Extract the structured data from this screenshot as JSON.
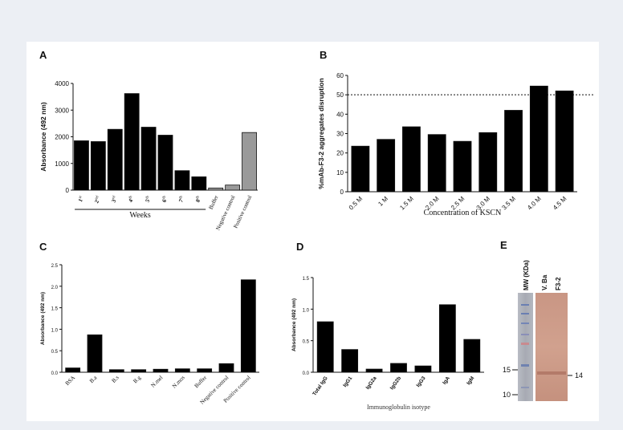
{
  "chart_data": [
    {
      "panel": "A",
      "type": "bar",
      "ylabel": "Absorbance (492 nm)",
      "xlabel": "Weeks",
      "ylim": [
        0,
        4000
      ],
      "yticks": [
        "0",
        "1000",
        "2000",
        "3000",
        "4000"
      ],
      "categories": [
        "1st",
        "2nd",
        "3rd",
        "4th",
        "5th",
        "6th",
        "7th",
        "8th",
        "Buffer",
        "Negative control",
        "Positive control"
      ],
      "values": [
        1850,
        1820,
        2280,
        3620,
        2360,
        2060,
        730,
        500,
        80,
        190,
        2160
      ],
      "colors": [
        "#000000",
        "#000000",
        "#000000",
        "#000000",
        "#000000",
        "#000000",
        "#000000",
        "#000000",
        "#9a9a9a",
        "#9a9a9a",
        "#9a9a9a"
      ]
    },
    {
      "panel": "B",
      "type": "bar",
      "ylabel": "%mAb-F3-2 aggregates disruption",
      "xlabel": "Concentration of KSCN",
      "ylim": [
        0,
        60
      ],
      "yticks": [
        "0",
        "10",
        "20",
        "30",
        "40",
        "50",
        "60"
      ],
      "reference_line": 50,
      "categories": [
        "0.5 M",
        "1 M",
        "1.5 M",
        "2.0 M",
        "2.5 M",
        "3.0 M",
        "3.5 M",
        "4.0 M",
        "4.5 M"
      ],
      "values": [
        23.5,
        27,
        33.5,
        29.5,
        26,
        30.5,
        42,
        54.5,
        52
      ]
    },
    {
      "panel": "C",
      "type": "bar",
      "ylabel": "Absorbance (492 nm)",
      "xlabel": "",
      "ylim": [
        0,
        2.5
      ],
      "yticks": [
        "0.0",
        "0.5",
        "1.0",
        "1.5",
        "2.0",
        "2.5"
      ],
      "categories": [
        "BSA",
        "B.a",
        "B.s",
        "B.g",
        "N.mel",
        "N.mos",
        "Buffer",
        "Negative control",
        "Positive control"
      ],
      "values": [
        0.1,
        0.87,
        0.06,
        0.06,
        0.07,
        0.08,
        0.08,
        0.2,
        2.15
      ]
    },
    {
      "panel": "D",
      "type": "bar",
      "ylabel": "Absorbance (492 nm)",
      "xlabel": "Immunoglobulin isotype",
      "ylim": [
        0,
        1.5
      ],
      "yticks": [
        "0.0",
        "0.5",
        "1.0",
        "1.5"
      ],
      "categories": [
        "Total IgG",
        "IgG1",
        "IgG2a",
        "IgG2b",
        "IgG3",
        "IgA",
        "IgM"
      ],
      "values": [
        0.8,
        0.36,
        0.05,
        0.14,
        0.1,
        1.07,
        0.52
      ]
    }
  ],
  "blot": {
    "panel": "E",
    "lane_labels": [
      "MW (KDa)",
      "V. Ba",
      "F3-2"
    ],
    "marker_labels": [
      "15",
      "10"
    ],
    "band_label": "14"
  }
}
